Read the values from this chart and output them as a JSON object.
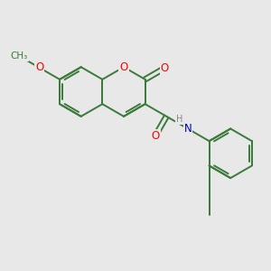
{
  "bg_color": "#e8e8e8",
  "bond_color": "#3a7a3a",
  "bond_width": 1.4,
  "dbo": 0.055,
  "atom_colors": {
    "O": "#ff0000",
    "N": "#0000bb",
    "H": "#888888",
    "C": "#3a7a3a"
  },
  "fs": 8.5,
  "r": 0.52
}
